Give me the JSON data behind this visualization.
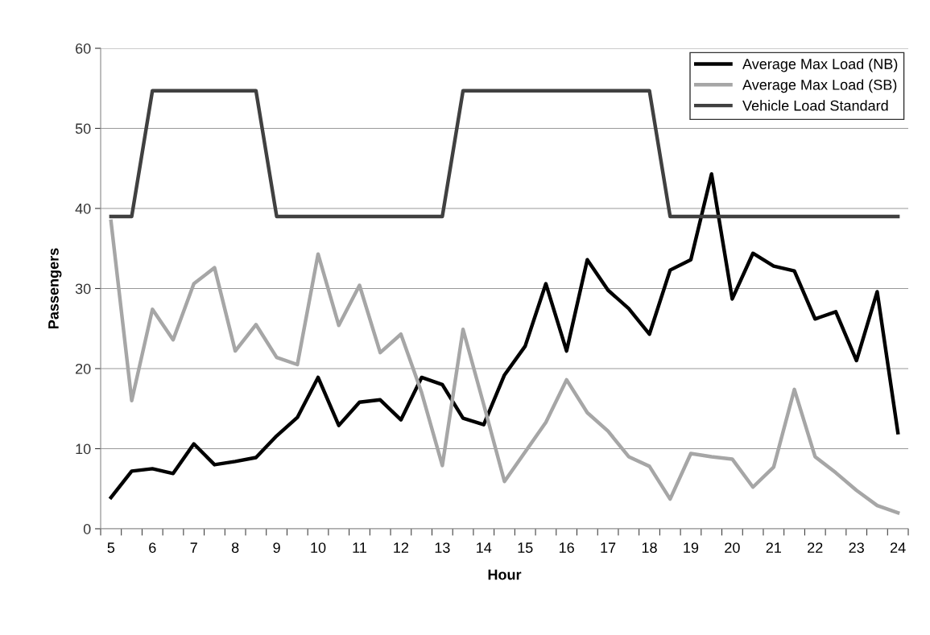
{
  "chart_data": {
    "type": "line",
    "xlabel": "Hour",
    "ylabel": "Passengers",
    "categories": [
      "5",
      null,
      "6",
      null,
      "7",
      null,
      "8",
      null,
      "9",
      null,
      "10",
      null,
      "11",
      null,
      "12",
      null,
      "13",
      null,
      "14",
      null,
      "15",
      null,
      "16",
      null,
      "17",
      null,
      "18",
      null,
      "19",
      null,
      "20",
      null,
      "21",
      null,
      "22",
      null,
      "23",
      null,
      "24"
    ],
    "series": [
      {
        "name": "Average Max Load (NB)",
        "color": "#000000",
        "values": [
          3.9,
          7.2,
          7.5,
          6.9,
          10.6,
          8.0,
          8.4,
          8.9,
          11.6,
          13.9,
          18.9,
          12.9,
          15.8,
          16.1,
          13.6,
          18.9,
          18.0,
          13.8,
          13.0,
          19.2,
          22.8,
          30.6,
          22.2,
          33.6,
          29.8,
          27.5,
          24.3,
          32.3,
          33.6,
          44.3,
          28.7,
          34.4,
          32.8,
          32.2,
          26.2,
          27.1,
          21.0,
          29.6,
          12.0
        ]
      },
      {
        "name": "Average Max Load (SB)",
        "color": "#a6a6a6",
        "values": [
          38.4,
          16.0,
          27.4,
          23.6,
          30.6,
          32.6,
          22.2,
          25.5,
          21.4,
          20.5,
          34.3,
          25.4,
          30.4,
          22.0,
          24.3,
          17.0,
          7.9,
          24.9,
          15.5,
          5.9,
          9.6,
          13.3,
          18.6,
          14.5,
          12.2,
          9.0,
          7.8,
          3.7,
          9.4,
          9.0,
          8.7,
          5.2,
          7.7,
          17.4,
          9.0,
          7.0,
          4.8,
          2.9,
          2.0
        ]
      },
      {
        "name": "Vehicle Load Standard",
        "color": "#404040",
        "values": [
          39,
          39,
          54.7,
          54.7,
          54.7,
          54.7,
          54.7,
          54.7,
          39,
          39,
          39,
          39,
          39,
          39,
          39,
          39,
          39,
          54.7,
          54.7,
          54.7,
          54.7,
          54.7,
          54.7,
          54.7,
          54.7,
          54.7,
          54.7,
          39,
          39,
          39,
          39,
          39,
          39,
          39,
          39,
          39,
          39,
          39,
          39
        ]
      }
    ],
    "ylim": [
      0,
      60
    ],
    "yticks": [
      0,
      10,
      20,
      30,
      40,
      50,
      60
    ],
    "grid": "y",
    "legend": "top right",
    "marker": "none",
    "line_style": "solid"
  }
}
